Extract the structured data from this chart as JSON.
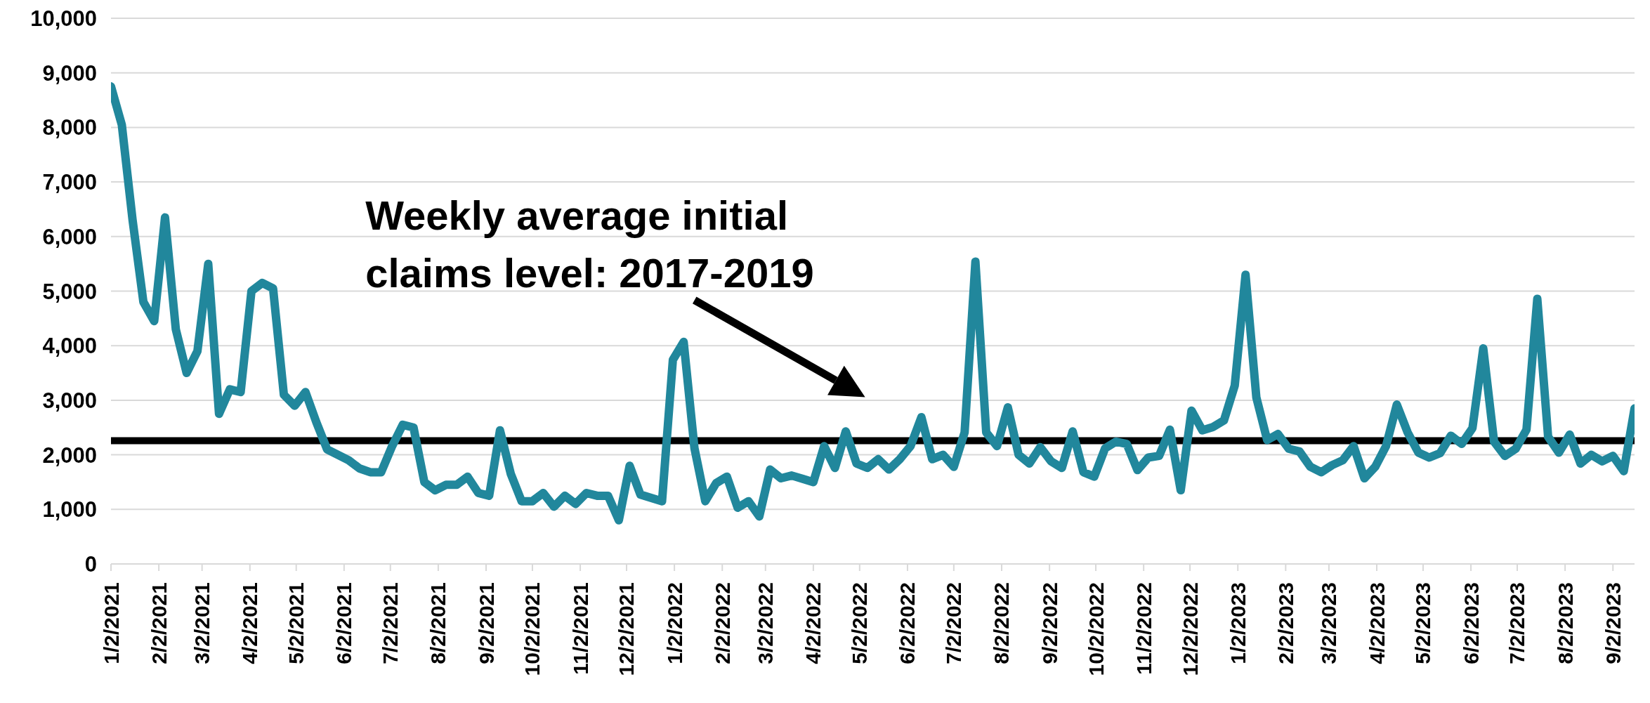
{
  "chart_data": {
    "type": "line",
    "color": "#21879c",
    "marker": "none",
    "grid": "y",
    "x": [
      "2021-01-02",
      "2021-01-09",
      "2021-01-16",
      "2021-01-23",
      "2021-01-30",
      "2021-02-06",
      "2021-02-13",
      "2021-02-20",
      "2021-02-27",
      "2021-03-06",
      "2021-03-13",
      "2021-03-20",
      "2021-03-27",
      "2021-04-03",
      "2021-04-10",
      "2021-04-17",
      "2021-04-24",
      "2021-05-01",
      "2021-05-08",
      "2021-05-15",
      "2021-05-22",
      "2021-05-29",
      "2021-06-05",
      "2021-06-12",
      "2021-06-19",
      "2021-06-26",
      "2021-07-03",
      "2021-07-10",
      "2021-07-17",
      "2021-07-24",
      "2021-07-31",
      "2021-08-07",
      "2021-08-14",
      "2021-08-21",
      "2021-08-28",
      "2021-09-04",
      "2021-09-11",
      "2021-09-18",
      "2021-09-25",
      "2021-10-02",
      "2021-10-09",
      "2021-10-16",
      "2021-10-23",
      "2021-10-30",
      "2021-11-06",
      "2021-11-13",
      "2021-11-20",
      "2021-11-27",
      "2021-12-04",
      "2021-12-11",
      "2021-12-18",
      "2021-12-25",
      "2022-01-01",
      "2022-01-08",
      "2022-01-15",
      "2022-01-22",
      "2022-01-29",
      "2022-02-05",
      "2022-02-12",
      "2022-02-19",
      "2022-02-26",
      "2022-03-05",
      "2022-03-12",
      "2022-03-19",
      "2022-03-26",
      "2022-04-02",
      "2022-04-09",
      "2022-04-16",
      "2022-04-23",
      "2022-04-30",
      "2022-05-07",
      "2022-05-14",
      "2022-05-21",
      "2022-05-28",
      "2022-06-04",
      "2022-06-11",
      "2022-06-18",
      "2022-06-25",
      "2022-07-02",
      "2022-07-09",
      "2022-07-16",
      "2022-07-23",
      "2022-07-30",
      "2022-08-06",
      "2022-08-13",
      "2022-08-20",
      "2022-08-27",
      "2022-09-03",
      "2022-09-10",
      "2022-09-17",
      "2022-09-24",
      "2022-10-01",
      "2022-10-08",
      "2022-10-15",
      "2022-10-22",
      "2022-10-29",
      "2022-11-05",
      "2022-11-12",
      "2022-11-19",
      "2022-11-26",
      "2022-12-03",
      "2022-12-10",
      "2022-12-17",
      "2022-12-24",
      "2022-12-31",
      "2023-01-07",
      "2023-01-14",
      "2023-01-21",
      "2023-01-28",
      "2023-02-04",
      "2023-02-11",
      "2023-02-18",
      "2023-02-25",
      "2023-03-04",
      "2023-03-11",
      "2023-03-18",
      "2023-03-25",
      "2023-04-01",
      "2023-04-08",
      "2023-04-15",
      "2023-04-22",
      "2023-04-29",
      "2023-05-06",
      "2023-05-13",
      "2023-05-20",
      "2023-05-27",
      "2023-06-03",
      "2023-06-10",
      "2023-06-17",
      "2023-06-24",
      "2023-07-01",
      "2023-07-08",
      "2023-07-15",
      "2023-07-22",
      "2023-07-29",
      "2023-08-05",
      "2023-08-12",
      "2023-08-19",
      "2023-08-26",
      "2023-09-02",
      "2023-09-09",
      "2023-09-16"
    ],
    "values": [
      8750,
      8050,
      6300,
      4800,
      4450,
      6350,
      4300,
      3500,
      3900,
      5500,
      2750,
      3200,
      3150,
      5000,
      5150,
      5050,
      3100,
      2900,
      3150,
      2600,
      2100,
      2000,
      1900,
      1750,
      1680,
      1680,
      2150,
      2550,
      2500,
      1500,
      1350,
      1450,
      1450,
      1600,
      1300,
      1250,
      2450,
      1650,
      1150,
      1150,
      1300,
      1050,
      1250,
      1100,
      1300,
      1250,
      1250,
      800,
      1800,
      1270,
      1210,
      1150,
      3740,
      4070,
      2120,
      1150,
      1480,
      1600,
      1030,
      1150,
      870,
      1730,
      1570,
      1620,
      1560,
      1500,
      2160,
      1760,
      2430,
      1840,
      1760,
      1920,
      1730,
      1920,
      2160,
      2690,
      1920,
      2000,
      1780,
      2410,
      5540,
      2410,
      2160,
      2870,
      2000,
      1840,
      2140,
      1880,
      1760,
      2430,
      1680,
      1600,
      2120,
      2240,
      2200,
      1720,
      1950,
      1980,
      2460,
      1350,
      2810,
      2450,
      2510,
      2630,
      3270,
      5300,
      3050,
      2270,
      2380,
      2110,
      2060,
      1780,
      1680,
      1810,
      1900,
      2160,
      1570,
      1780,
      2160,
      2920,
      2410,
      2040,
      1950,
      2030,
      2350,
      2200,
      2490,
      3950,
      2240,
      1980,
      2110,
      2460,
      4860,
      2330,
      2040,
      2370,
      1840,
      2000,
      1880,
      1980,
      1700,
      2850
    ],
    "xlim": [
      "2021-01-02",
      "2023-09-16"
    ],
    "xticks": [
      {
        "value": "2021-01-02",
        "label": "1/2/2021"
      },
      {
        "value": "2021-02-02",
        "label": "2/2/2021"
      },
      {
        "value": "2021-03-02",
        "label": "3/2/2021"
      },
      {
        "value": "2021-04-02",
        "label": "4/2/2021"
      },
      {
        "value": "2021-05-02",
        "label": "5/2/2021"
      },
      {
        "value": "2021-06-02",
        "label": "6/2/2021"
      },
      {
        "value": "2021-07-02",
        "label": "7/2/2021"
      },
      {
        "value": "2021-08-02",
        "label": "8/2/2021"
      },
      {
        "value": "2021-09-02",
        "label": "9/2/2021"
      },
      {
        "value": "2021-10-02",
        "label": "10/2/2021"
      },
      {
        "value": "2021-11-02",
        "label": "11/2/2021"
      },
      {
        "value": "2021-12-02",
        "label": "12/2/2021"
      },
      {
        "value": "2022-01-02",
        "label": "1/2/2022"
      },
      {
        "value": "2022-02-02",
        "label": "2/2/2022"
      },
      {
        "value": "2022-03-02",
        "label": "3/2/2022"
      },
      {
        "value": "2022-04-02",
        "label": "4/2/2022"
      },
      {
        "value": "2022-05-02",
        "label": "5/2/2022"
      },
      {
        "value": "2022-06-02",
        "label": "6/2/2022"
      },
      {
        "value": "2022-07-02",
        "label": "7/2/2022"
      },
      {
        "value": "2022-08-02",
        "label": "8/2/2022"
      },
      {
        "value": "2022-09-02",
        "label": "9/2/2022"
      },
      {
        "value": "2022-10-02",
        "label": "10/2/2022"
      },
      {
        "value": "2022-11-02",
        "label": "11/2/2022"
      },
      {
        "value": "2022-12-02",
        "label": "12/2/2022"
      },
      {
        "value": "2023-01-02",
        "label": "1/2/2023"
      },
      {
        "value": "2023-02-02",
        "label": "2/2/2023"
      },
      {
        "value": "2023-03-02",
        "label": "3/2/2023"
      },
      {
        "value": "2023-04-02",
        "label": "4/2/2023"
      },
      {
        "value": "2023-05-02",
        "label": "5/2/2023"
      },
      {
        "value": "2023-06-02",
        "label": "6/2/2023"
      },
      {
        "value": "2023-07-02",
        "label": "7/2/2023"
      },
      {
        "value": "2023-08-02",
        "label": "8/2/2023"
      },
      {
        "value": "2023-09-02",
        "label": "9/2/2023"
      }
    ],
    "ylim": [
      0,
      10000
    ],
    "yticks": [
      {
        "value": 0,
        "label": "0"
      },
      {
        "value": 1000,
        "label": "1,000"
      },
      {
        "value": 2000,
        "label": "2,000"
      },
      {
        "value": 3000,
        "label": "3,000"
      },
      {
        "value": 4000,
        "label": "4,000"
      },
      {
        "value": 5000,
        "label": "5,000"
      },
      {
        "value": 6000,
        "label": "6,000"
      },
      {
        "value": 7000,
        "label": "7,000"
      },
      {
        "value": 8000,
        "label": "8,000"
      },
      {
        "value": 9000,
        "label": "9,000"
      },
      {
        "value": 10000,
        "label": "10,000"
      }
    ],
    "ref_lines": [
      {
        "axis": "y",
        "value": 2260,
        "color": "#000000"
      }
    ],
    "annotations": [
      "Weekly average initial claims level: 2017-2019"
    ]
  }
}
